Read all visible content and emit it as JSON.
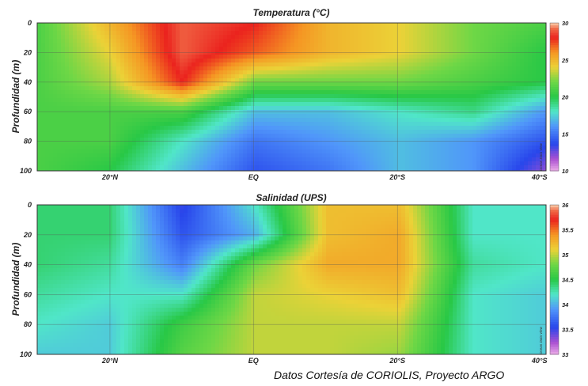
{
  "chart_data": [
    {
      "type": "heatmap",
      "title": "Temperatura (°C)",
      "ylabel": "Profundidad (m)",
      "x_ticks": [
        "20°N",
        "EQ",
        "20°S",
        "40°S"
      ],
      "y_ticks": [
        0,
        20,
        40,
        60,
        80,
        100
      ],
      "ylim": [
        0,
        100
      ],
      "y_inverted": true,
      "colorbar_ticks": [
        10,
        15,
        20,
        25,
        30
      ],
      "colorbar_range": [
        10,
        30
      ],
      "colorbar_label": "Ocean Data View",
      "x_positions_deg": [
        -30,
        -20,
        -10,
        0,
        10,
        20,
        30,
        40
      ],
      "depths_m": [
        0,
        20,
        40,
        60,
        80,
        100
      ],
      "values": [
        [
          21,
          25,
          29,
          28,
          25,
          24,
          22,
          21
        ],
        [
          21,
          24,
          29,
          27,
          25,
          24,
          22,
          20
        ],
        [
          21,
          23,
          28,
          22,
          22,
          22,
          21,
          20
        ],
        [
          21,
          21,
          21,
          17,
          17,
          18,
          19,
          16
        ],
        [
          21,
          21,
          18,
          15,
          16,
          17,
          16,
          14
        ],
        [
          21,
          20,
          17,
          14,
          15,
          17,
          16,
          12
        ]
      ]
    },
    {
      "type": "heatmap",
      "title": "Salinidad (UPS)",
      "ylabel": "Profundidad (m)",
      "x_ticks": [
        "20°N",
        "EQ",
        "20°S",
        "40°S"
      ],
      "y_ticks": [
        0,
        20,
        40,
        60,
        80,
        100
      ],
      "ylim": [
        0,
        100
      ],
      "y_inverted": true,
      "colorbar_ticks": [
        33,
        33.5,
        34,
        34.5,
        35,
        35.5,
        36
      ],
      "colorbar_range": [
        33,
        36
      ],
      "colorbar_label": "Ocean Data View",
      "x_positions_deg": [
        -30,
        -20,
        -10,
        0,
        10,
        20,
        30,
        40
      ],
      "depths_m": [
        0,
        20,
        40,
        60,
        80,
        100
      ],
      "values": [
        [
          34.4,
          34.4,
          33.5,
          34.2,
          35.2,
          35.2,
          34.2,
          34.2
        ],
        [
          34.4,
          34.4,
          33.6,
          34.0,
          35.2,
          35.3,
          34.2,
          34.2
        ],
        [
          34.4,
          34.3,
          33.8,
          34.8,
          35.3,
          35.3,
          34.3,
          34.2
        ],
        [
          34.3,
          34.2,
          34.2,
          35.0,
          35.1,
          35.2,
          34.2,
          34.1
        ],
        [
          34.2,
          34.1,
          34.6,
          35.0,
          35.0,
          35.0,
          34.2,
          34.1
        ],
        [
          34.1,
          34.1,
          34.7,
          35.0,
          35.0,
          34.9,
          34.2,
          34.1
        ]
      ]
    }
  ],
  "credit": "Datos Cortesía de CORIOLIS, Proyecto ARGO"
}
